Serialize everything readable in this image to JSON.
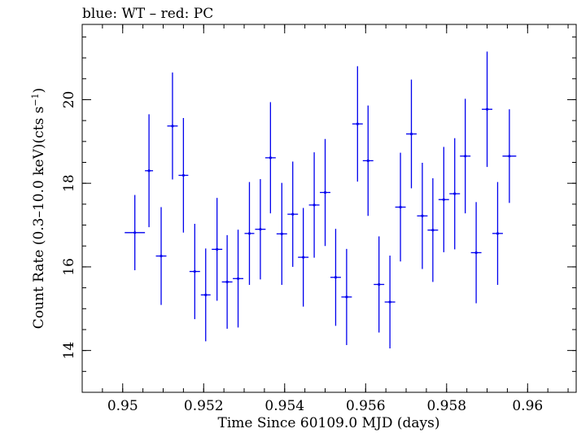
{
  "chart_data": {
    "type": "scatter",
    "title": "blue: WT – red: PC",
    "xlabel": "Time Since 60109.0 MJD (days)",
    "ylabel": {
      "prefix": "Count Rate (0.3–10.0 keV)(cts s",
      "sup": "−1",
      "suffix": ")"
    },
    "xlim": [
      0.949,
      0.9612
    ],
    "ylim": [
      13.0,
      21.8
    ],
    "xticks_major": [
      0.95,
      0.952,
      0.954,
      0.956,
      0.958,
      0.96
    ],
    "xtick_labels": [
      "0.95",
      "0.952",
      "0.954",
      "0.956",
      "0.958",
      "0.96"
    ],
    "xticks_minor_step": 0.0005,
    "yticks_major": [
      14,
      16,
      18,
      20
    ],
    "ytick_labels": [
      "14",
      "16",
      "18",
      "20"
    ],
    "yticks_minor_step": 0.5,
    "grid": false,
    "series": [
      {
        "color": "#0000ee",
        "points": [
          {
            "x": 0.9503,
            "xerr": 0.00025,
            "y": 16.82,
            "yerr_lo": 0.9,
            "yerr_hi": 0.9
          },
          {
            "x": 0.95065,
            "xerr": 0.0001,
            "y": 18.3,
            "yerr_lo": 1.35,
            "yerr_hi": 1.35
          },
          {
            "x": 0.95095,
            "xerr": 0.00013,
            "y": 16.26,
            "yerr_lo": 1.17,
            "yerr_hi": 1.17
          },
          {
            "x": 0.95123,
            "xerr": 0.00013,
            "y": 19.37,
            "yerr_lo": 1.28,
            "yerr_hi": 1.28
          },
          {
            "x": 0.9515,
            "xerr": 0.00012,
            "y": 18.19,
            "yerr_lo": 1.37,
            "yerr_hi": 1.37
          },
          {
            "x": 0.95178,
            "xerr": 0.00013,
            "y": 15.89,
            "yerr_lo": 1.14,
            "yerr_hi": 1.14
          },
          {
            "x": 0.95205,
            "xerr": 0.00012,
            "y": 15.33,
            "yerr_lo": 1.11,
            "yerr_hi": 1.11
          },
          {
            "x": 0.95233,
            "xerr": 0.00013,
            "y": 16.42,
            "yerr_lo": 1.23,
            "yerr_hi": 1.23
          },
          {
            "x": 0.95258,
            "xerr": 0.00013,
            "y": 15.64,
            "yerr_lo": 1.12,
            "yerr_hi": 1.12
          },
          {
            "x": 0.95285,
            "xerr": 0.00013,
            "y": 15.72,
            "yerr_lo": 1.17,
            "yerr_hi": 1.17
          },
          {
            "x": 0.95313,
            "xerr": 0.00012,
            "y": 16.8,
            "yerr_lo": 1.23,
            "yerr_hi": 1.23
          },
          {
            "x": 0.9534,
            "xerr": 0.00013,
            "y": 16.9,
            "yerr_lo": 1.2,
            "yerr_hi": 1.2
          },
          {
            "x": 0.95365,
            "xerr": 0.00013,
            "y": 18.61,
            "yerr_lo": 1.33,
            "yerr_hi": 1.33
          },
          {
            "x": 0.95393,
            "xerr": 0.00013,
            "y": 16.79,
            "yerr_lo": 1.22,
            "yerr_hi": 1.22
          },
          {
            "x": 0.9542,
            "xerr": 0.00013,
            "y": 17.26,
            "yerr_lo": 1.26,
            "yerr_hi": 1.26
          },
          {
            "x": 0.95446,
            "xerr": 0.00013,
            "y": 16.23,
            "yerr_lo": 1.18,
            "yerr_hi": 1.18
          },
          {
            "x": 0.95473,
            "xerr": 0.00013,
            "y": 17.48,
            "yerr_lo": 1.26,
            "yerr_hi": 1.26
          },
          {
            "x": 0.955,
            "xerr": 0.00013,
            "y": 17.78,
            "yerr_lo": 1.28,
            "yerr_hi": 1.28
          },
          {
            "x": 0.95526,
            "xerr": 0.00013,
            "y": 15.75,
            "yerr_lo": 1.16,
            "yerr_hi": 1.16
          },
          {
            "x": 0.95553,
            "xerr": 0.00013,
            "y": 15.28,
            "yerr_lo": 1.15,
            "yerr_hi": 1.15
          },
          {
            "x": 0.9558,
            "xerr": 0.00013,
            "y": 19.42,
            "yerr_lo": 1.38,
            "yerr_hi": 1.38
          },
          {
            "x": 0.95606,
            "xerr": 0.00013,
            "y": 18.54,
            "yerr_lo": 1.32,
            "yerr_hi": 1.32
          },
          {
            "x": 0.95633,
            "xerr": 0.00013,
            "y": 15.58,
            "yerr_lo": 1.15,
            "yerr_hi": 1.15
          },
          {
            "x": 0.9566,
            "xerr": 0.00013,
            "y": 15.16,
            "yerr_lo": 1.11,
            "yerr_hi": 1.11
          },
          {
            "x": 0.95686,
            "xerr": 0.00013,
            "y": 17.43,
            "yerr_lo": 1.3,
            "yerr_hi": 1.3
          },
          {
            "x": 0.95713,
            "xerr": 0.00013,
            "y": 19.18,
            "yerr_lo": 1.3,
            "yerr_hi": 1.3
          },
          {
            "x": 0.9574,
            "xerr": 0.00013,
            "y": 17.22,
            "yerr_lo": 1.27,
            "yerr_hi": 1.27
          },
          {
            "x": 0.95766,
            "xerr": 0.00013,
            "y": 16.88,
            "yerr_lo": 1.24,
            "yerr_hi": 1.24
          },
          {
            "x": 0.95793,
            "xerr": 0.00013,
            "y": 17.61,
            "yerr_lo": 1.26,
            "yerr_hi": 1.26
          },
          {
            "x": 0.9582,
            "xerr": 0.00013,
            "y": 17.75,
            "yerr_lo": 1.33,
            "yerr_hi": 1.33
          },
          {
            "x": 0.95846,
            "xerr": 0.00013,
            "y": 18.65,
            "yerr_lo": 1.37,
            "yerr_hi": 1.37
          },
          {
            "x": 0.95873,
            "xerr": 0.00013,
            "y": 16.34,
            "yerr_lo": 1.21,
            "yerr_hi": 1.21
          },
          {
            "x": 0.959,
            "xerr": 0.00013,
            "y": 19.77,
            "yerr_lo": 1.38,
            "yerr_hi": 1.38
          },
          {
            "x": 0.95926,
            "xerr": 0.00013,
            "y": 16.8,
            "yerr_lo": 1.23,
            "yerr_hi": 1.23
          },
          {
            "x": 0.95955,
            "xerr": 0.00017,
            "y": 18.65,
            "yerr_lo": 1.12,
            "yerr_hi": 1.12
          }
        ]
      }
    ]
  }
}
